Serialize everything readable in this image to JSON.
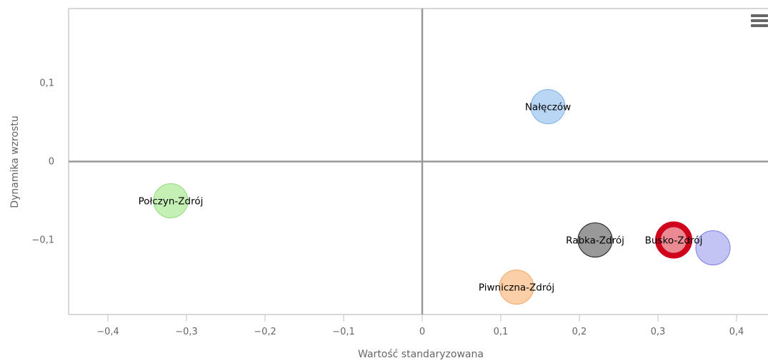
{
  "menu_icon": "hamburger-menu-icon",
  "chart_data": {
    "type": "scatter",
    "xlabel": "Wartość standaryzowana",
    "ylabel": "Dynamika wzrostu",
    "xlim": [
      -0.45,
      0.44
    ],
    "ylim": [
      -0.195,
      0.195
    ],
    "x_ticks": [
      {
        "value": -0.4,
        "label": "−0,4"
      },
      {
        "value": -0.3,
        "label": "−0,3"
      },
      {
        "value": -0.2,
        "label": "−0,2"
      },
      {
        "value": -0.1,
        "label": "−0,1"
      },
      {
        "value": 0,
        "label": "0"
      },
      {
        "value": 0.1,
        "label": "0,1"
      },
      {
        "value": 0.2,
        "label": "0,2"
      },
      {
        "value": 0.3,
        "label": "0,3"
      },
      {
        "value": 0.4,
        "label": "0,4"
      }
    ],
    "y_ticks": [
      {
        "value": 0.1,
        "label": "0,1"
      },
      {
        "value": 0,
        "label": "0"
      },
      {
        "value": -0.1,
        "label": "−0,1"
      }
    ],
    "quadrant_lines": {
      "x": 0,
      "y": 0
    },
    "grid": false,
    "points": [
      {
        "x": 0.16,
        "y": 0.07,
        "label": "Nałęczów",
        "color": "#b9d6f5",
        "stroke": "#7fb0e6",
        "highlight": false
      },
      {
        "x": -0.32,
        "y": -0.05,
        "label": "Połczyn-Zdrój",
        "color": "#c5f0b5",
        "stroke": "#8fdc7a",
        "highlight": false
      },
      {
        "x": 0.22,
        "y": -0.1,
        "label": "Rabka-Zdrój",
        "color": "#999999",
        "stroke": "#1a1a1a",
        "highlight": false
      },
      {
        "x": 0.32,
        "y": -0.1,
        "label": "Busko-Zdrój",
        "color": "#ec8a93",
        "stroke": "#d0021b",
        "highlight": true
      },
      {
        "x": 0.37,
        "y": -0.11,
        "label": "",
        "color": "#c4c4f4",
        "stroke": "#7d7de8",
        "highlight": false
      },
      {
        "x": 0.12,
        "y": -0.16,
        "label": "Piwniczna-Zdrój",
        "color": "#fbcfa7",
        "stroke": "#f3a96a",
        "highlight": false
      }
    ]
  }
}
